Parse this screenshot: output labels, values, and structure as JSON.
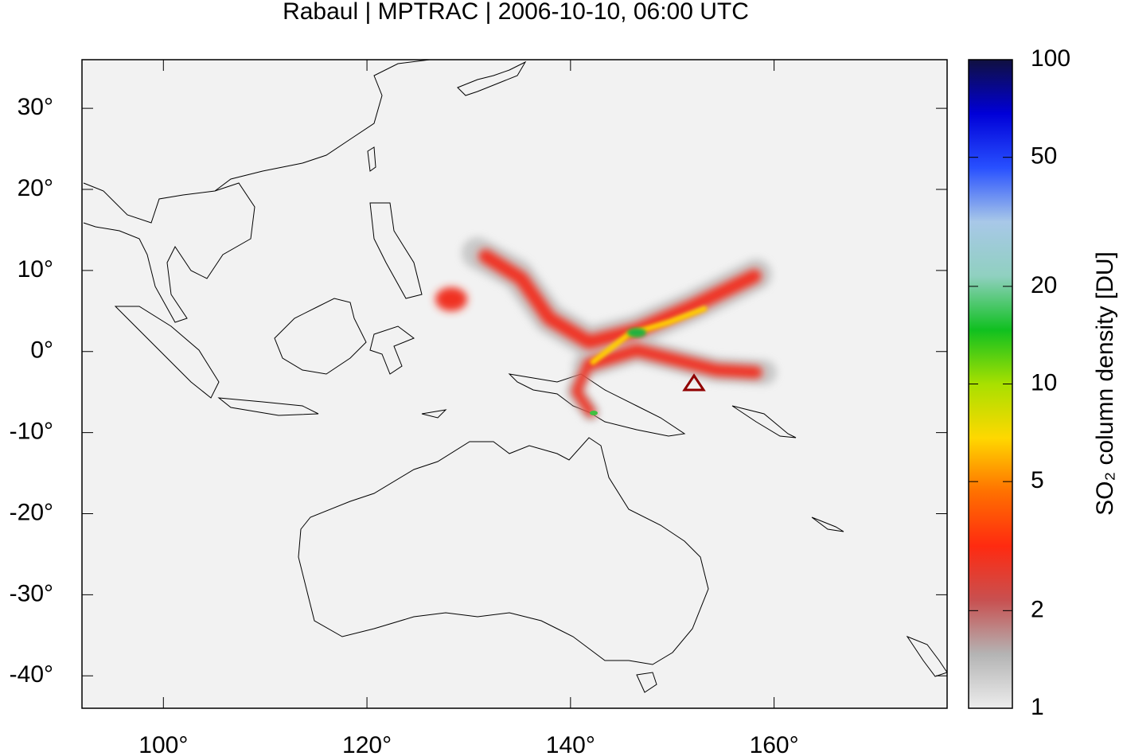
{
  "chart_data": {
    "type": "map",
    "title": "Rabaul | MPTRAC | 2006-10-10, 06:00 UTC",
    "xlim": [
      92,
      177
    ],
    "ylim": [
      -44,
      36
    ],
    "xticks": [
      {
        "value": 100,
        "label": "100°"
      },
      {
        "value": 120,
        "label": "120°"
      },
      {
        "value": 140,
        "label": "140°"
      },
      {
        "value": 160,
        "label": "160°"
      }
    ],
    "yticks": [
      {
        "value": 30,
        "label": "30°"
      },
      {
        "value": 20,
        "label": "20°"
      },
      {
        "value": 10,
        "label": "10°"
      },
      {
        "value": 0,
        "label": "0°"
      },
      {
        "value": -10,
        "label": "-10°"
      },
      {
        "value": -20,
        "label": "-20°"
      },
      {
        "value": -30,
        "label": "-30°"
      },
      {
        "value": -40,
        "label": "-40°"
      }
    ],
    "colorbar": {
      "label": "SO₂ column density [DU]",
      "scale": "log",
      "zlim": [
        1,
        100
      ],
      "zticks": [
        1,
        2,
        5,
        10,
        20,
        50,
        100
      ],
      "colormap": [
        "#ececec",
        "#b4b4b4",
        "#c85050",
        "#ff2a10",
        "#ff7000",
        "#ffd800",
        "#a8e000",
        "#10c020",
        "#90d0c0",
        "#a8c8e8",
        "#2850ff",
        "#0000d8",
        "#101040"
      ]
    }
  }
}
